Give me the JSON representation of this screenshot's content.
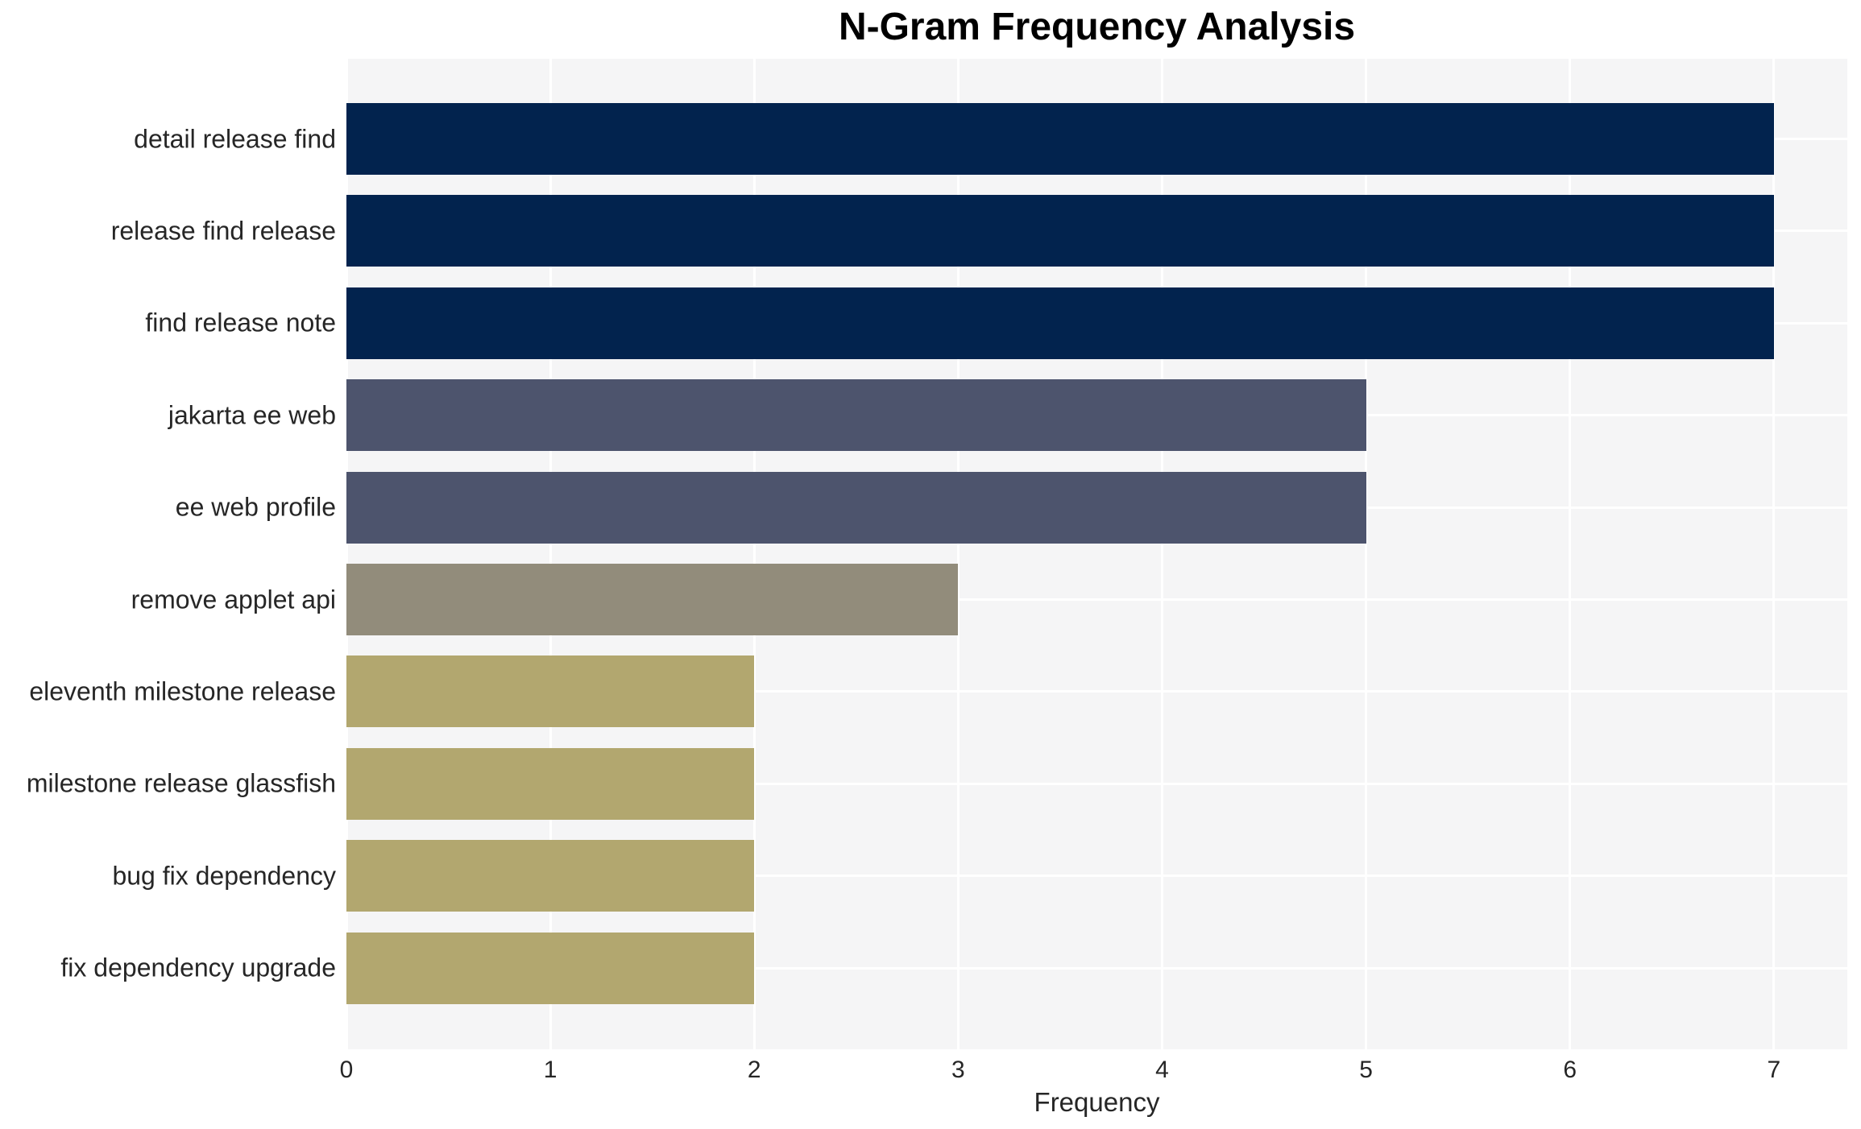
{
  "chart_data": {
    "type": "bar",
    "orientation": "horizontal",
    "title": "N-Gram Frequency Analysis",
    "xlabel": "Frequency",
    "ylabel": "",
    "categories": [
      "detail release find",
      "release find release",
      "find release note",
      "jakarta ee web",
      "ee web profile",
      "remove applet api",
      "eleventh milestone release",
      "milestone release glassfish",
      "bug fix dependency",
      "fix dependency upgrade"
    ],
    "values": [
      7,
      7,
      7,
      5,
      5,
      3,
      2,
      2,
      2,
      2
    ],
    "bar_colors": [
      "#02234e",
      "#02234e",
      "#02234e",
      "#4d546d",
      "#4d546d",
      "#928c7b",
      "#b2a76f",
      "#b2a76f",
      "#b2a76f",
      "#b2a76f"
    ],
    "xlim": [
      0,
      7.36
    ],
    "xticks": [
      0,
      1,
      2,
      3,
      4,
      5,
      6,
      7
    ],
    "grid": {
      "vertical_at_xticks": true,
      "horizontal_at_category_centers": true,
      "grid_color": "#ffffff",
      "plot_background": "#f5f5f6"
    },
    "legend": "none",
    "text_color": "#262626",
    "title_color": "#000000"
  }
}
